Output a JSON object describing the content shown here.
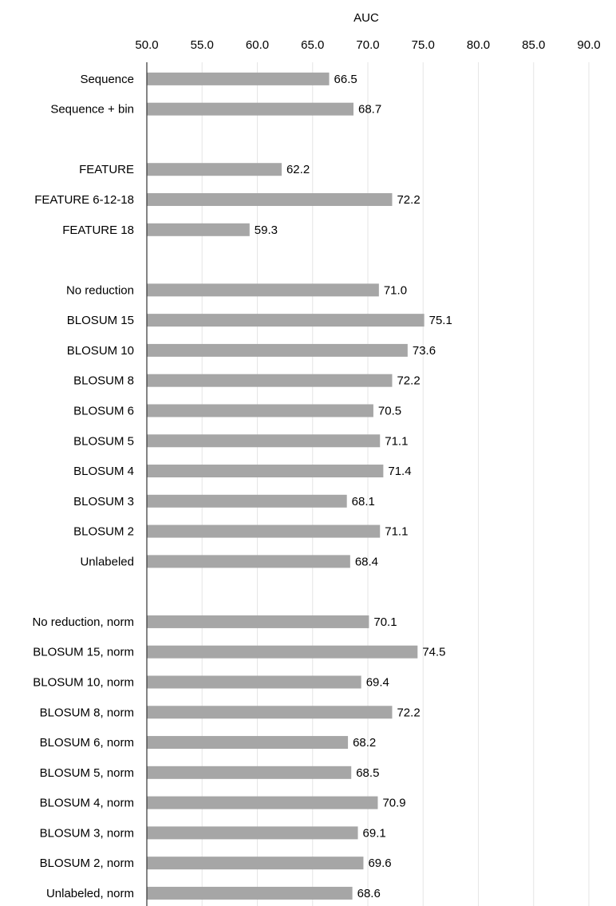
{
  "chart_data": {
    "type": "bar",
    "orientation": "horizontal",
    "xlabel": "AUC",
    "xaxis_position": "top",
    "xlim": [
      50.0,
      90.0
    ],
    "xticks": [
      50.0,
      55.0,
      60.0,
      65.0,
      70.0,
      75.0,
      80.0,
      85.0,
      90.0
    ],
    "grid": true,
    "bar_color": "#a6a6a6",
    "grid_color": "#e6e6e6",
    "rows": [
      {
        "label": "Sequence",
        "value": 66.5
      },
      {
        "label": "Sequence + bin",
        "value": 68.7
      },
      {
        "label": "",
        "value": null
      },
      {
        "label": "FEATURE",
        "value": 62.2
      },
      {
        "label": "FEATURE 6-12-18",
        "value": 72.2
      },
      {
        "label": "FEATURE 18",
        "value": 59.3
      },
      {
        "label": "",
        "value": null
      },
      {
        "label": "No reduction",
        "value": 71.0
      },
      {
        "label": "BLOSUM 15",
        "value": 75.1
      },
      {
        "label": "BLOSUM 10",
        "value": 73.6
      },
      {
        "label": "BLOSUM 8",
        "value": 72.2
      },
      {
        "label": "BLOSUM 6",
        "value": 70.5
      },
      {
        "label": "BLOSUM 5",
        "value": 71.1
      },
      {
        "label": "BLOSUM 4",
        "value": 71.4
      },
      {
        "label": "BLOSUM 3",
        "value": 68.1
      },
      {
        "label": "BLOSUM 2",
        "value": 71.1
      },
      {
        "label": "Unlabeled",
        "value": 68.4
      },
      {
        "label": "",
        "value": null
      },
      {
        "label": "No reduction, norm",
        "value": 70.1
      },
      {
        "label": "BLOSUM 15, norm",
        "value": 74.5
      },
      {
        "label": "BLOSUM 10, norm",
        "value": 69.4
      },
      {
        "label": "BLOSUM 8, norm",
        "value": 72.2
      },
      {
        "label": "BLOSUM 6, norm",
        "value": 68.2
      },
      {
        "label": "BLOSUM 5, norm",
        "value": 68.5
      },
      {
        "label": "BLOSUM 4, norm",
        "value": 70.9
      },
      {
        "label": "BLOSUM 3, norm",
        "value": 69.1
      },
      {
        "label": "BLOSUM 2, norm",
        "value": 69.6
      },
      {
        "label": "Unlabeled, norm",
        "value": 68.6
      }
    ]
  }
}
